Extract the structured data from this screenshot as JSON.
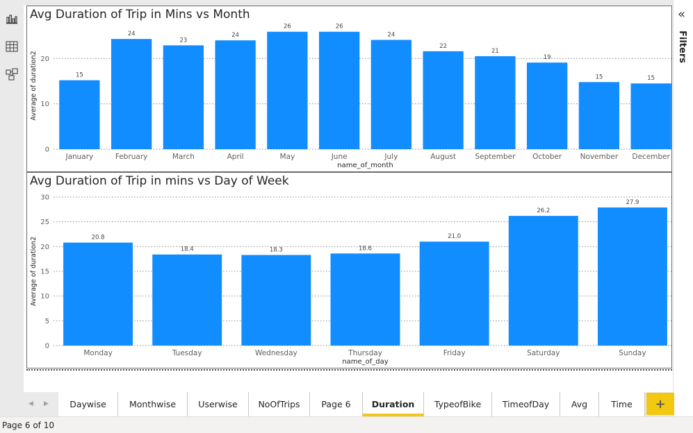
{
  "left_rail": {
    "icons": [
      "report-view-icon",
      "data-view-icon",
      "model-view-icon"
    ]
  },
  "right_pane": {
    "collapse_glyph": "«",
    "filters_label": "Filters"
  },
  "tabs": {
    "items": [
      "Daywise",
      "Monthwise",
      "Userwise",
      "NoOfTrips",
      "Page 6",
      "Duration",
      "TypeofBike",
      "TimeofDay",
      "Avg",
      "Time"
    ],
    "active": "Duration",
    "add_label": "+",
    "nav_prev": "◀",
    "nav_next": "▶"
  },
  "status": {
    "page_indicator": "Page 6 of 10"
  },
  "colors": {
    "bar": "#118dff",
    "active_tab": "#f2c811"
  },
  "chart_data": [
    {
      "type": "bar",
      "title": "Avg Duration of Trip in Mins vs Month",
      "xlabel": "name_of_month",
      "ylabel": "Average of duration2",
      "categories": [
        "January",
        "February",
        "March",
        "April",
        "May",
        "June",
        "July",
        "August",
        "September",
        "October",
        "November",
        "December"
      ],
      "values": [
        15.2,
        24.3,
        22.9,
        24.0,
        25.9,
        25.9,
        24.1,
        21.6,
        20.5,
        19.1,
        14.8,
        14.5
      ],
      "data_labels": [
        "15",
        "24",
        "23",
        "24",
        "26",
        "26",
        "24",
        "22",
        "21",
        "19",
        "15",
        "15"
      ],
      "yticks": [
        0,
        10,
        20
      ],
      "ylim": [
        0,
        28
      ],
      "grid": true
    },
    {
      "type": "bar",
      "title": "Avg Duration of Trip in mins vs Day of Week",
      "xlabel": "name_of_day",
      "ylabel": "Average of duration2",
      "categories": [
        "Monday",
        "Tuesday",
        "Wednesday",
        "Thursday",
        "Friday",
        "Saturday",
        "Sunday"
      ],
      "values": [
        20.8,
        18.4,
        18.3,
        18.6,
        21.0,
        26.2,
        27.9
      ],
      "data_labels": [
        "20.8",
        "18.4",
        "18.3",
        "18.6",
        "21.0",
        "26.2",
        "27.9"
      ],
      "yticks": [
        0,
        5,
        10,
        15,
        20,
        25,
        30
      ],
      "ylim": [
        0,
        30
      ],
      "grid": true
    }
  ]
}
